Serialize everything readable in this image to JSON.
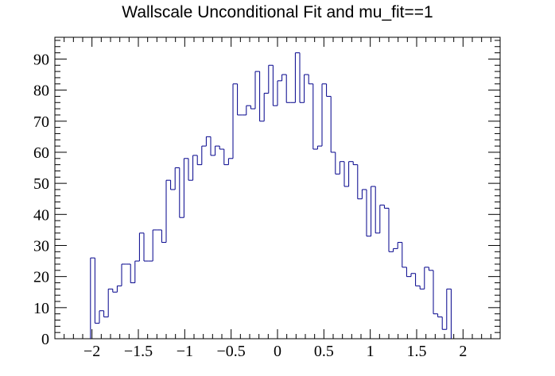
{
  "chart_data": {
    "type": "histogram",
    "title": "Wallscale Unconditional Fit and mu_fit==1",
    "xlabel": "",
    "ylabel": "",
    "xlim": [
      -2.4,
      2.4
    ],
    "ylim": [
      0,
      97
    ],
    "grid": false,
    "legend": "none",
    "line_color": "#00008b",
    "bin_width": 0.048,
    "bin_edges_start": -2.016,
    "values": [
      26,
      5,
      9,
      7,
      16,
      15,
      17,
      24,
      24,
      18,
      25,
      34,
      25,
      25,
      35,
      35,
      31,
      51,
      48,
      55,
      39,
      58,
      51,
      59,
      56,
      62,
      65,
      59,
      62,
      61,
      56,
      58,
      82,
      72,
      72,
      75,
      74,
      86,
      70,
      79,
      88,
      75,
      83,
      85,
      76,
      76,
      92,
      76,
      85,
      82,
      61,
      62,
      82,
      78,
      60,
      53,
      57,
      49,
      57,
      56,
      45,
      48,
      33,
      49,
      34,
      43,
      42,
      28,
      29,
      31,
      23,
      20,
      21,
      17,
      16,
      23,
      22,
      8,
      7,
      3,
      16
    ],
    "x_ticks": [
      "−2",
      "−1.5",
      "−1",
      "−0.5",
      "0",
      "0.5",
      "1",
      "1.5",
      "2"
    ],
    "y_ticks": [
      "0",
      "10",
      "20",
      "30",
      "40",
      "50",
      "60",
      "70",
      "80",
      "90"
    ]
  }
}
